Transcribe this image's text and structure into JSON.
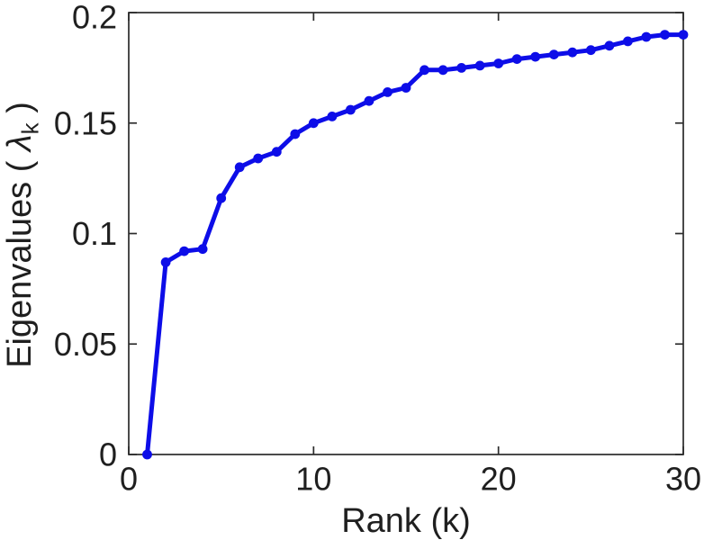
{
  "figure": {
    "background": "#ffffff"
  },
  "chart_data": {
    "type": "line",
    "title": "",
    "xlabel": "Rank (k)",
    "ylabel": {
      "prefix": "Eigenvalues ( ",
      "symbol": "λ",
      "subscript": "k",
      "suffix": " )"
    },
    "x": [
      1,
      2,
      3,
      4,
      5,
      6,
      7,
      8,
      9,
      10,
      11,
      12,
      13,
      14,
      15,
      16,
      17,
      18,
      19,
      20,
      21,
      22,
      23,
      24,
      25,
      26,
      27,
      28,
      29,
      30
    ],
    "y": [
      0.0,
      0.087,
      0.092,
      0.093,
      0.116,
      0.13,
      0.134,
      0.137,
      0.145,
      0.15,
      0.153,
      0.156,
      0.16,
      0.164,
      0.166,
      0.174,
      0.174,
      0.175,
      0.176,
      0.177,
      0.179,
      0.18,
      0.181,
      0.182,
      0.183,
      0.185,
      0.187,
      0.189,
      0.19,
      0.19
    ],
    "xlim": [
      0,
      30
    ],
    "ylim": [
      0,
      0.2
    ],
    "xticks": [
      0,
      10,
      20,
      30
    ],
    "xtick_labels": [
      "0",
      "10",
      "20",
      "30"
    ],
    "yticks": [
      0,
      0.05,
      0.1,
      0.15,
      0.2
    ],
    "ytick_labels": [
      "0",
      "0.05",
      "0.1",
      "0.15",
      "0.2"
    ],
    "grid": false,
    "legend": null,
    "line_color": "#0d0de8",
    "marker": "filled-circle",
    "axis_color": "#2b2b2b",
    "tick_label_color": "#1f1f1f"
  }
}
